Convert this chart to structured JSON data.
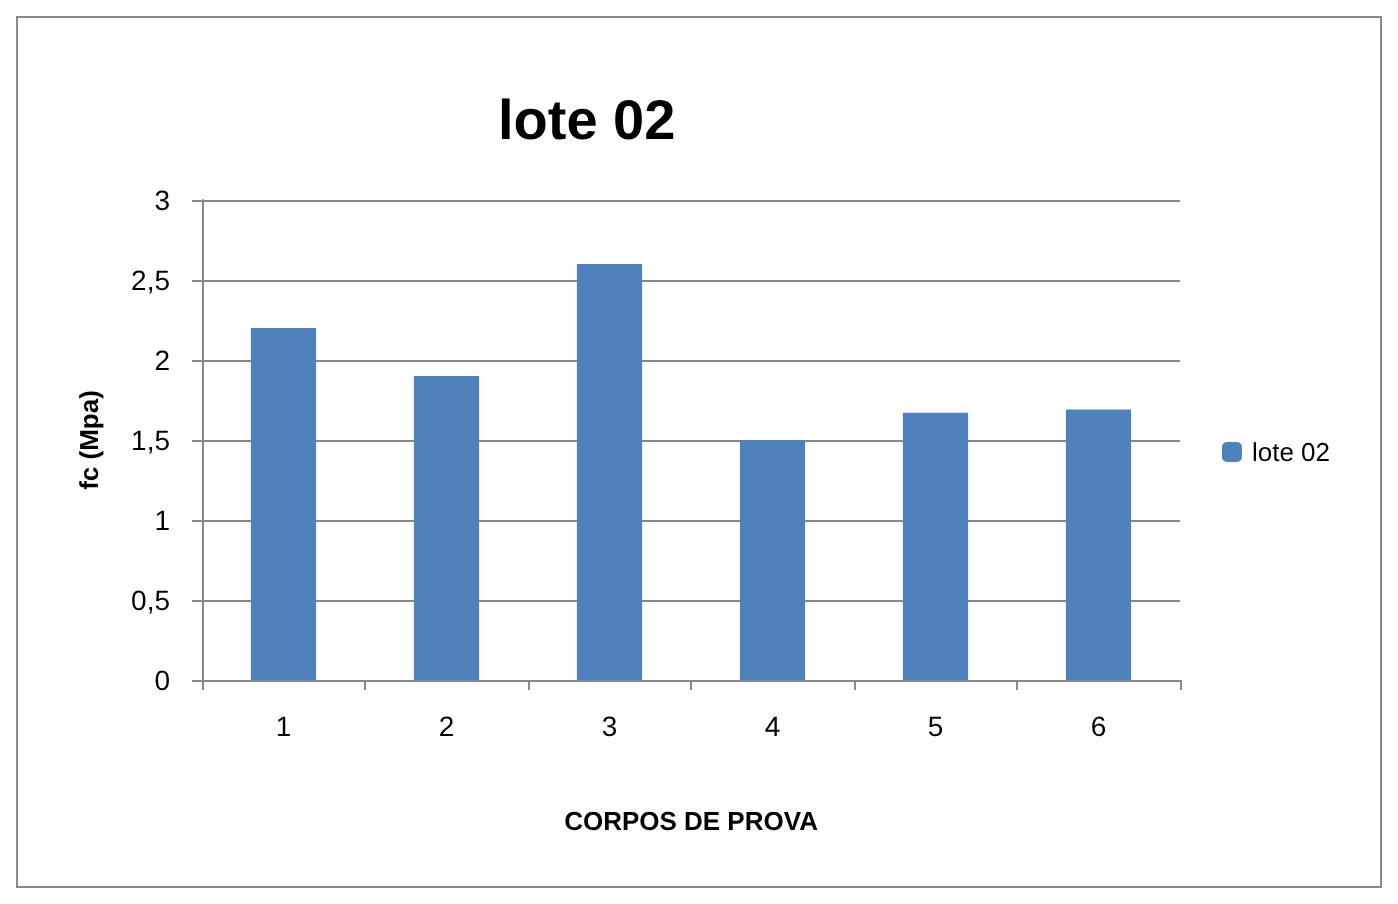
{
  "chart_data": {
    "type": "bar",
    "title": "lote 02",
    "xlabel": "CORPOS DE PROVA",
    "ylabel": "fc (Mpa)",
    "categories": [
      "1",
      "2",
      "3",
      "4",
      "5",
      "6"
    ],
    "series": [
      {
        "name": "lote 02",
        "color": "#4f81bd",
        "values": [
          2.2,
          1.9,
          2.6,
          1.5,
          1.67,
          1.69
        ]
      }
    ],
    "ylim": [
      0,
      3
    ],
    "yticks": [
      0,
      {
        "value": 0.5,
        "label": "0,5"
      },
      1,
      {
        "value": 1.5,
        "label": "1,5"
      },
      2,
      {
        "value": 2.5,
        "label": "2,5"
      },
      3
    ],
    "grid": "y",
    "legend": "right"
  }
}
